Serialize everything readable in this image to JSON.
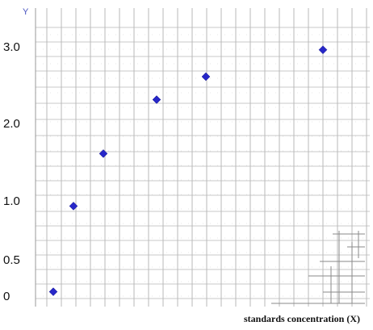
{
  "chart_data": {
    "type": "scatter",
    "title": "",
    "xlabel": "standards concentration (X)",
    "ylabel": "Y",
    "y_tick_labels": [
      "0",
      "0.5",
      "1.0",
      "2.0",
      "3.0"
    ],
    "grid": true,
    "marker": "diamond",
    "colors": {
      "marker": "#2727c8",
      "grid": "#b9b9b9",
      "minor_grid": "#d0d0d0"
    },
    "series": [
      {
        "x": [
          1,
          2,
          3,
          4,
          5,
          6
        ],
        "y": [
          0.05,
          0.95,
          1.6,
          2.3,
          2.6,
          2.95
        ]
      }
    ]
  }
}
